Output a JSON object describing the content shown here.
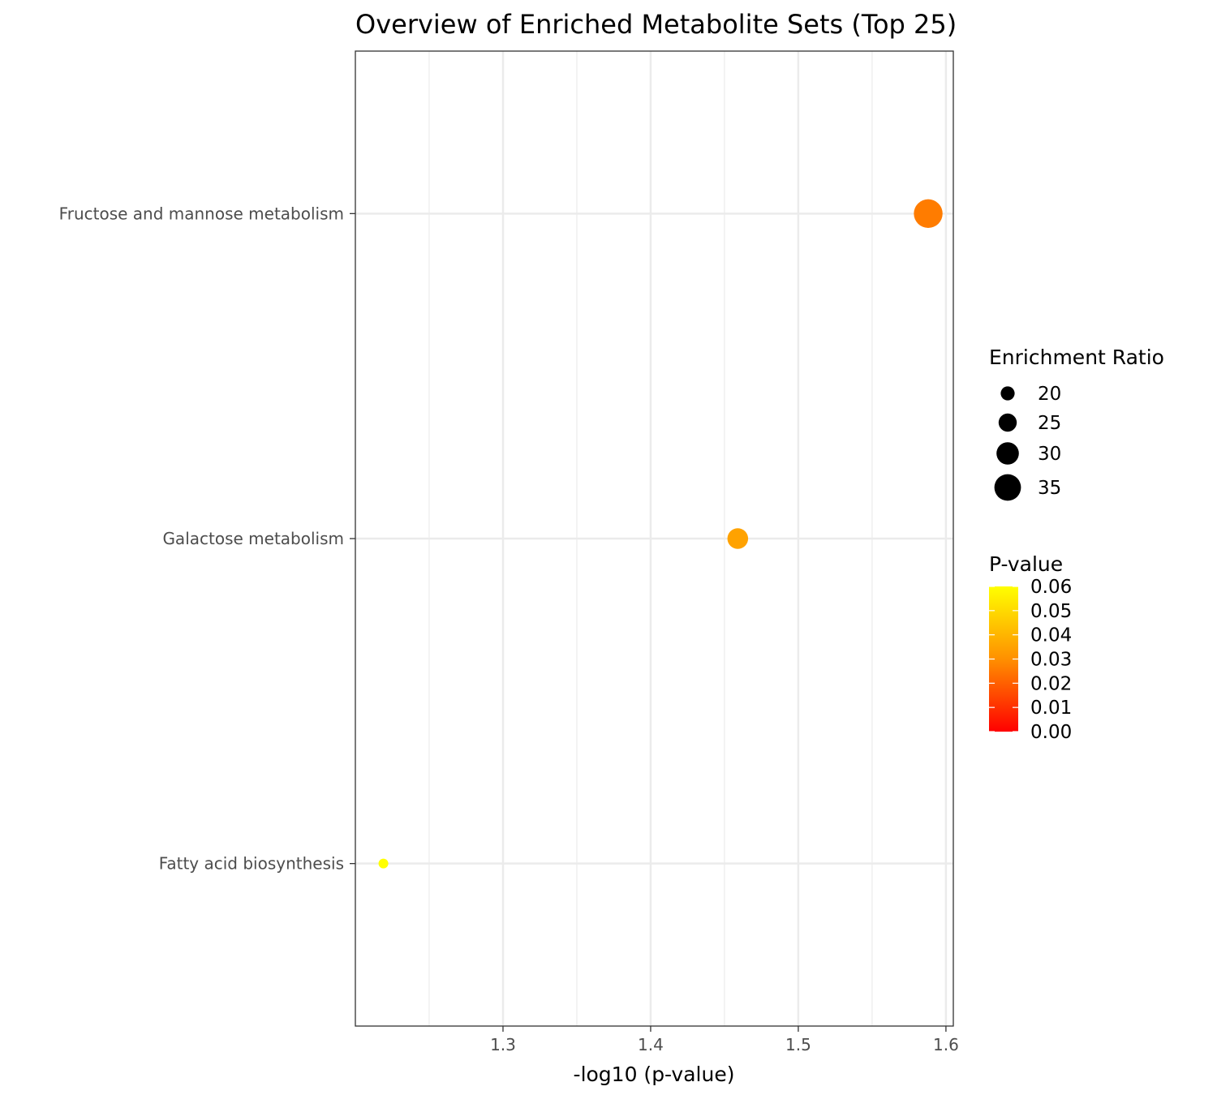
{
  "chart_data": {
    "type": "scatter",
    "title": "Overview of Enriched Metabolite Sets (Top 25)",
    "xlabel": "-log10 (p-value)",
    "ylabel": "",
    "xlim": [
      1.2,
      1.605
    ],
    "x_ticks": [
      "1.3",
      "1.4",
      "1.5",
      "1.6"
    ],
    "grid": true,
    "categories": [
      "Fructose and mannose metabolism",
      "Galactose metabolism",
      "Fatty acid biosynthesis"
    ],
    "points": [
      {
        "category": "Fructose and mannose metabolism",
        "x": 1.588,
        "enrichment_ratio": 37.5,
        "p_value": 0.0258
      },
      {
        "category": "Galactose metabolism",
        "x": 1.459,
        "enrichment_ratio": 28.0,
        "p_value": 0.0348
      },
      {
        "category": "Fatty acid biosynthesis",
        "x": 1.219,
        "enrichment_ratio": 15.0,
        "p_value": 0.0604
      }
    ],
    "size_legend": {
      "title": "Enrichment Ratio",
      "labels": [
        "20",
        "25",
        "30",
        "35"
      ],
      "values": [
        20,
        25,
        30,
        35
      ]
    },
    "color_legend": {
      "title": "P-value",
      "labels": [
        "0.06",
        "0.05",
        "0.04",
        "0.03",
        "0.02",
        "0.01",
        "0.00"
      ],
      "values": [
        0.06,
        0.05,
        0.04,
        0.03,
        0.02,
        0.01,
        0.0
      ],
      "low_color": "#ff0000",
      "high_color": "#ffff00"
    },
    "legend_position": "right"
  }
}
